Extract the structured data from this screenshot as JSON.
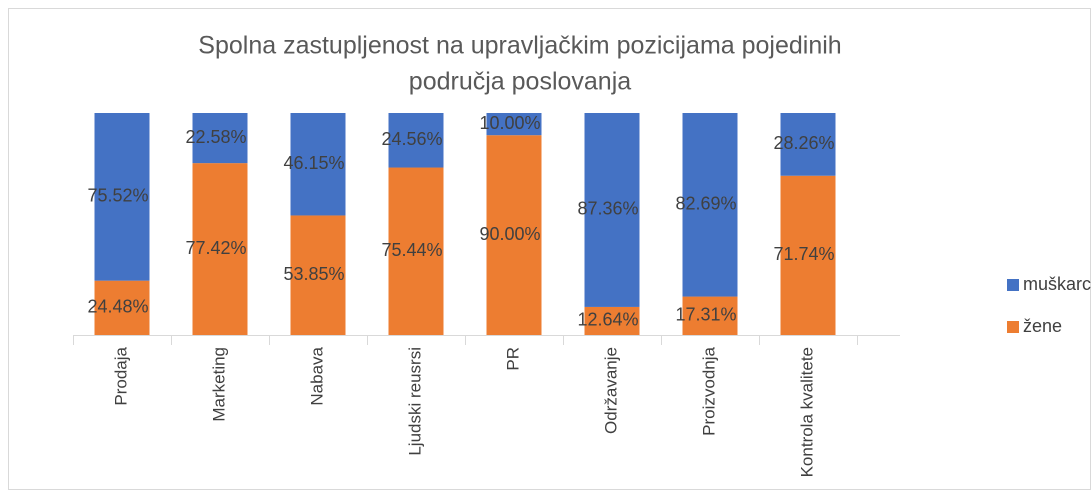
{
  "chart_data": {
    "type": "stacked_bar",
    "title": "Spolna zastupljenost na upravljačkim pozicijama pojedinih",
    "title_line_2": "područja poslovanja",
    "categories": [
      "Prodaja",
      "Marketing",
      "Nabava",
      "Ljudski reusrsi",
      "PR",
      "Održavanje",
      "Proizvodnja",
      "Kontrola kvalitete"
    ],
    "series": [
      {
        "name": "muškarci",
        "color": "#4472c4",
        "values": [
          75.52,
          22.58,
          46.15,
          24.56,
          10.0,
          87.36,
          82.69,
          28.26
        ],
        "value_labels": [
          "75.52%",
          "22.58%",
          "46.15%",
          "24.56%",
          "10.00%",
          "87.36%",
          "82.69%",
          "28.26%"
        ]
      },
      {
        "name": "žene",
        "color": "#ed7d31",
        "values": [
          24.48,
          77.42,
          53.85,
          75.44,
          90.0,
          12.64,
          17.31,
          71.74
        ],
        "value_labels": [
          "24.48%",
          "77.42%",
          "53.85%",
          "75.44%",
          "90.00%",
          "12.64%",
          "17.31%",
          "71.74%"
        ]
      }
    ],
    "ylim": [
      0,
      100
    ],
    "legend": "right"
  }
}
